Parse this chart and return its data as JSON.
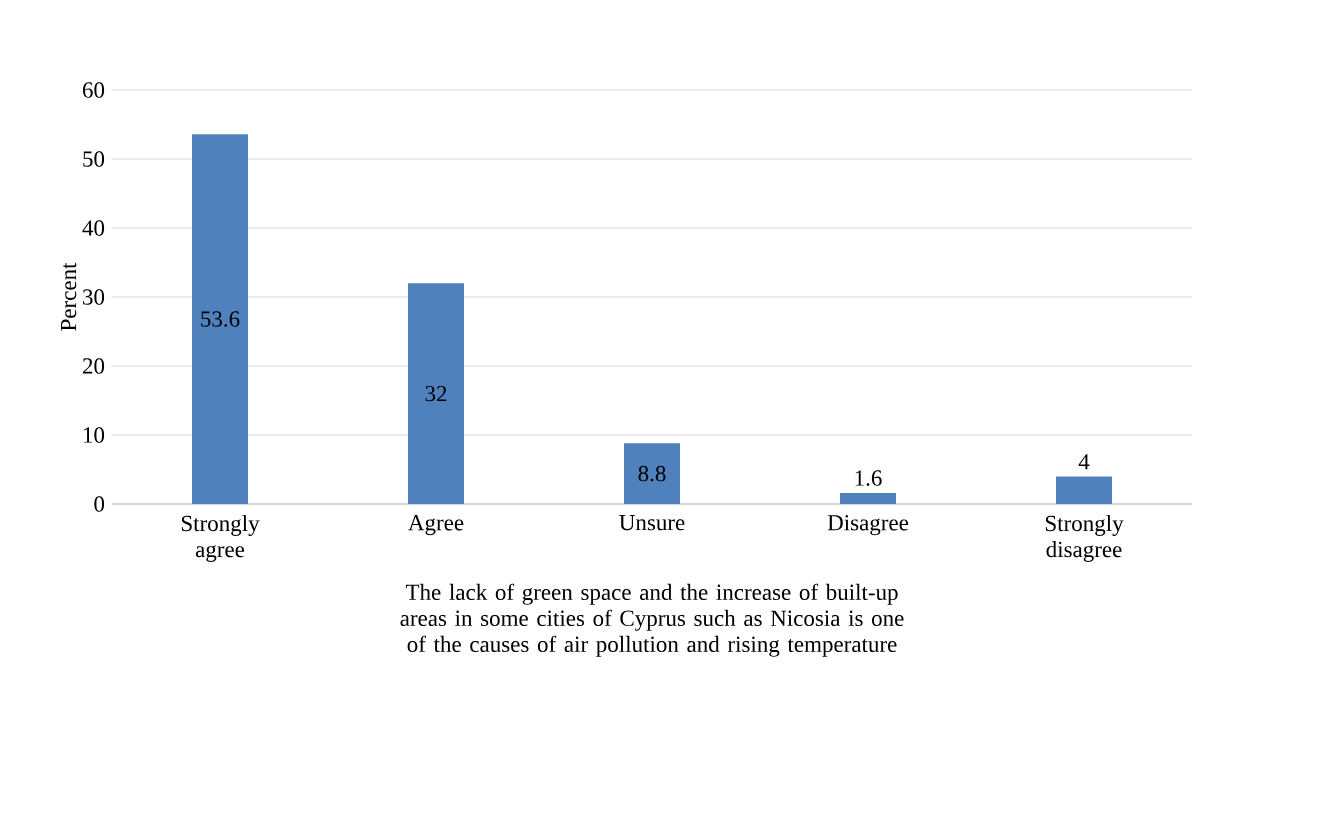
{
  "chart_data": {
    "type": "bar",
    "xlabel": "The lack of green space and the increase of built-up areas in some cities of Cyprus such as Nicosia is one of the causes of air pollution and rising temperature",
    "ylabel": "Percent",
    "categories": [
      "Strongly agree",
      "Agree",
      "Unsure",
      "Disagree",
      "Strongly disagree"
    ],
    "values": [
      53.6,
      32,
      8.8,
      1.6,
      4
    ],
    "color": "#4f81bd",
    "ylim": [
      0,
      60
    ],
    "yticks": [
      0,
      10,
      20,
      30,
      40,
      50,
      60
    ],
    "grid": "y",
    "data_labels": true
  }
}
